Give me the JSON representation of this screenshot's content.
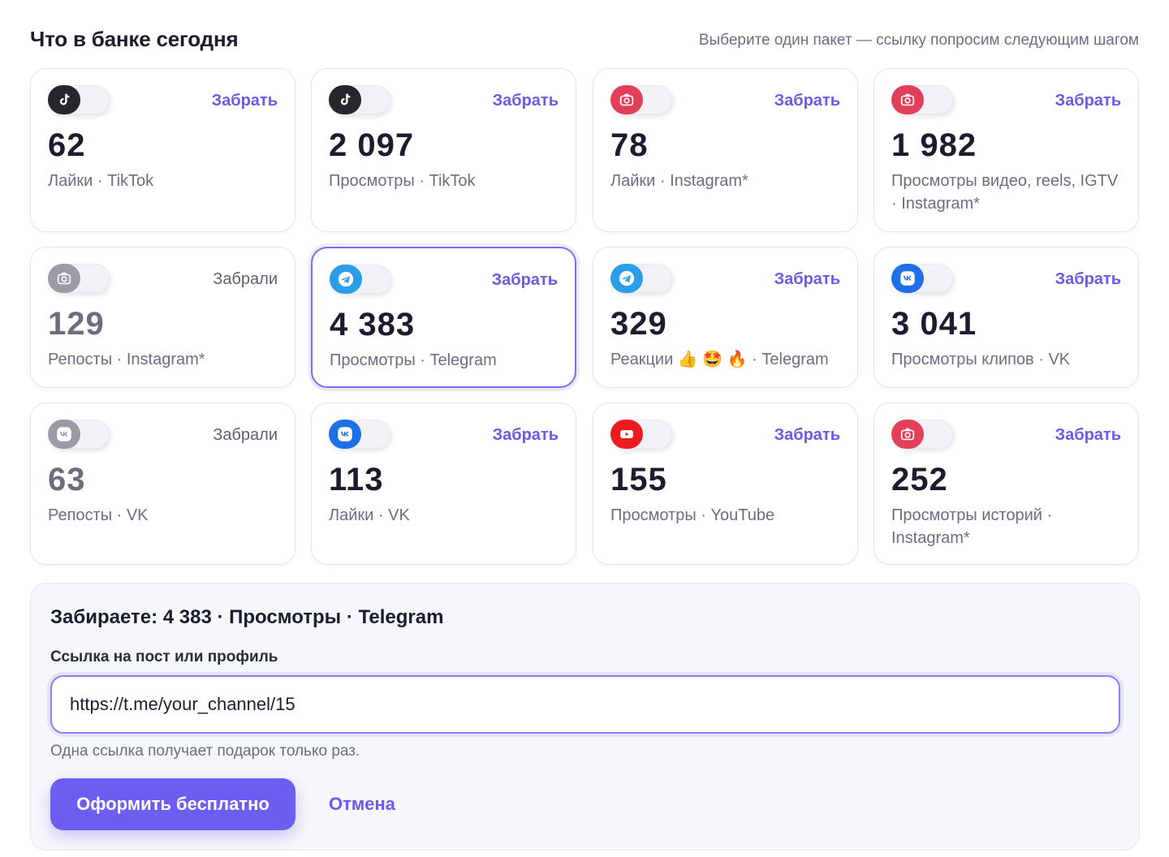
{
  "header": {
    "title": "Что в банке сегодня",
    "hint": "Выберите один пакет — ссылку попросим следующим шагом"
  },
  "colors": {
    "accent": "#6c5ef0",
    "tiktok": "#26262b",
    "instagram": "#e2405a",
    "telegram": "#2a9ee6",
    "vk": "#1f6fe8",
    "youtube": "#ea1c1c",
    "disabled": "#9a9ba6"
  },
  "packages": [
    {
      "value": "62",
      "label": "Лайки · TikTok",
      "action": "Забрать",
      "icon": "tiktok-icon",
      "state": "available",
      "selected": false
    },
    {
      "value": "2 097",
      "label": "Просмотры · TikTok",
      "action": "Забрать",
      "icon": "tiktok-icon",
      "state": "available",
      "selected": false
    },
    {
      "value": "78",
      "label": "Лайки · Instagram*",
      "action": "Забрать",
      "icon": "instagram-icon",
      "state": "available",
      "selected": false
    },
    {
      "value": "1 982",
      "label": "Просмотры видео, reels, IGTV · Instagram*",
      "action": "Забрать",
      "icon": "instagram-icon",
      "state": "available",
      "selected": false
    },
    {
      "value": "129",
      "label": "Репосты · Instagram*",
      "action": "Забрали",
      "icon": "instagram-icon",
      "state": "claimed",
      "selected": false
    },
    {
      "value": "4 383",
      "label": "Просмотры · Telegram",
      "action": "Забрать",
      "icon": "telegram-icon",
      "state": "available",
      "selected": true
    },
    {
      "value": "329",
      "label": "Реакции 👍 🤩 🔥 · Telegram",
      "action": "Забрать",
      "icon": "telegram-icon",
      "state": "available",
      "selected": false
    },
    {
      "value": "3 041",
      "label": "Просмотры клипов · VK",
      "action": "Забрать",
      "icon": "vk-icon",
      "state": "available",
      "selected": false
    },
    {
      "value": "63",
      "label": "Репосты · VK",
      "action": "Забрали",
      "icon": "vk-icon",
      "state": "claimed",
      "selected": false
    },
    {
      "value": "113",
      "label": "Лайки · VK",
      "action": "Забрать",
      "icon": "vk-icon",
      "state": "available",
      "selected": false
    },
    {
      "value": "155",
      "label": "Просмотры · YouTube",
      "action": "Забрать",
      "icon": "youtube-icon",
      "state": "available",
      "selected": false
    },
    {
      "value": "252",
      "label": "Просмотры историй · Instagram*",
      "action": "Забрать",
      "icon": "instagram-icon",
      "state": "available",
      "selected": false
    }
  ],
  "form": {
    "title": "Забираете: 4 383 · Просмотры · Telegram",
    "field_label": "Ссылка на пост или профиль",
    "link_value": "https://t.me/your_channel/15",
    "note": "Одна ссылка получает подарок только раз.",
    "submit_label": "Оформить бесплатно",
    "cancel_label": "Отмена"
  }
}
